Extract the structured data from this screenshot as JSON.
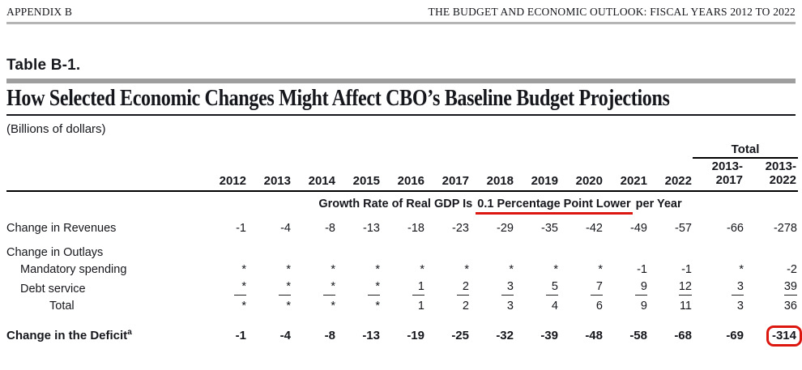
{
  "page_header": {
    "left": "APPENDIX B",
    "right": "THE BUDGET AND ECONOMIC OUTLOOK: FISCAL YEARS 2012 TO 2022"
  },
  "table_label": "Table B-1.",
  "title": "How Selected Economic Changes Might Affect CBO’s Baseline Budget Projections",
  "units": "(Billions of dollars)",
  "colors": {
    "annotation_red": "#db1710",
    "header_rule_gray": "#b5b5b5",
    "title_bar_gray": "#9e9e9e",
    "text_color": "#15171c"
  },
  "columns": {
    "total_label": "Total",
    "years": [
      "2012",
      "2013",
      "2014",
      "2015",
      "2016",
      "2017",
      "2018",
      "2019",
      "2020",
      "2021",
      "2022"
    ],
    "totals": [
      [
        "2013-",
        "2017"
      ],
      [
        "2013-",
        "2022"
      ]
    ]
  },
  "section_header": {
    "prefix": "Growth Rate of Real GDP Is ",
    "highlight": "0.1 Percentage Point Lower",
    "suffix": " per Year"
  },
  "rows": [
    {
      "label": "Change in Revenues",
      "indent": 0,
      "gap": true,
      "values": [
        "-1",
        "-4",
        "-8",
        "-13",
        "-18",
        "-23",
        "-29",
        "-35",
        "-42",
        "-49",
        "-57",
        "-66",
        "-278"
      ]
    },
    {
      "label": "Change in Outlays",
      "indent": 0,
      "gap": true,
      "group": true,
      "values": []
    },
    {
      "label": "Mandatory spending",
      "indent": 1,
      "values": [
        "*",
        "*",
        "*",
        "*",
        "*",
        "*",
        "*",
        "*",
        "*",
        "-1",
        "-1",
        "*",
        "-2"
      ]
    },
    {
      "label": "Debt service",
      "indent": 1,
      "sum_underline": true,
      "values": [
        "*",
        "*",
        "*",
        "*",
        "1",
        "2",
        "3",
        "5",
        "7",
        "9",
        "12",
        "3",
        "39"
      ]
    },
    {
      "label": "Total",
      "indent": 2,
      "values": [
        "*",
        "*",
        "*",
        "*",
        "1",
        "2",
        "3",
        "4",
        "6",
        "9",
        "11",
        "3",
        "36"
      ]
    },
    {
      "label": "Change in the Deficit",
      "footnote_marker": "a",
      "indent": 0,
      "emphasis": true,
      "circle_last": true,
      "values": [
        "-1",
        "-4",
        "-8",
        "-13",
        "-19",
        "-25",
        "-32",
        "-39",
        "-48",
        "-58",
        "-68",
        "-69",
        "-314"
      ]
    }
  ]
}
